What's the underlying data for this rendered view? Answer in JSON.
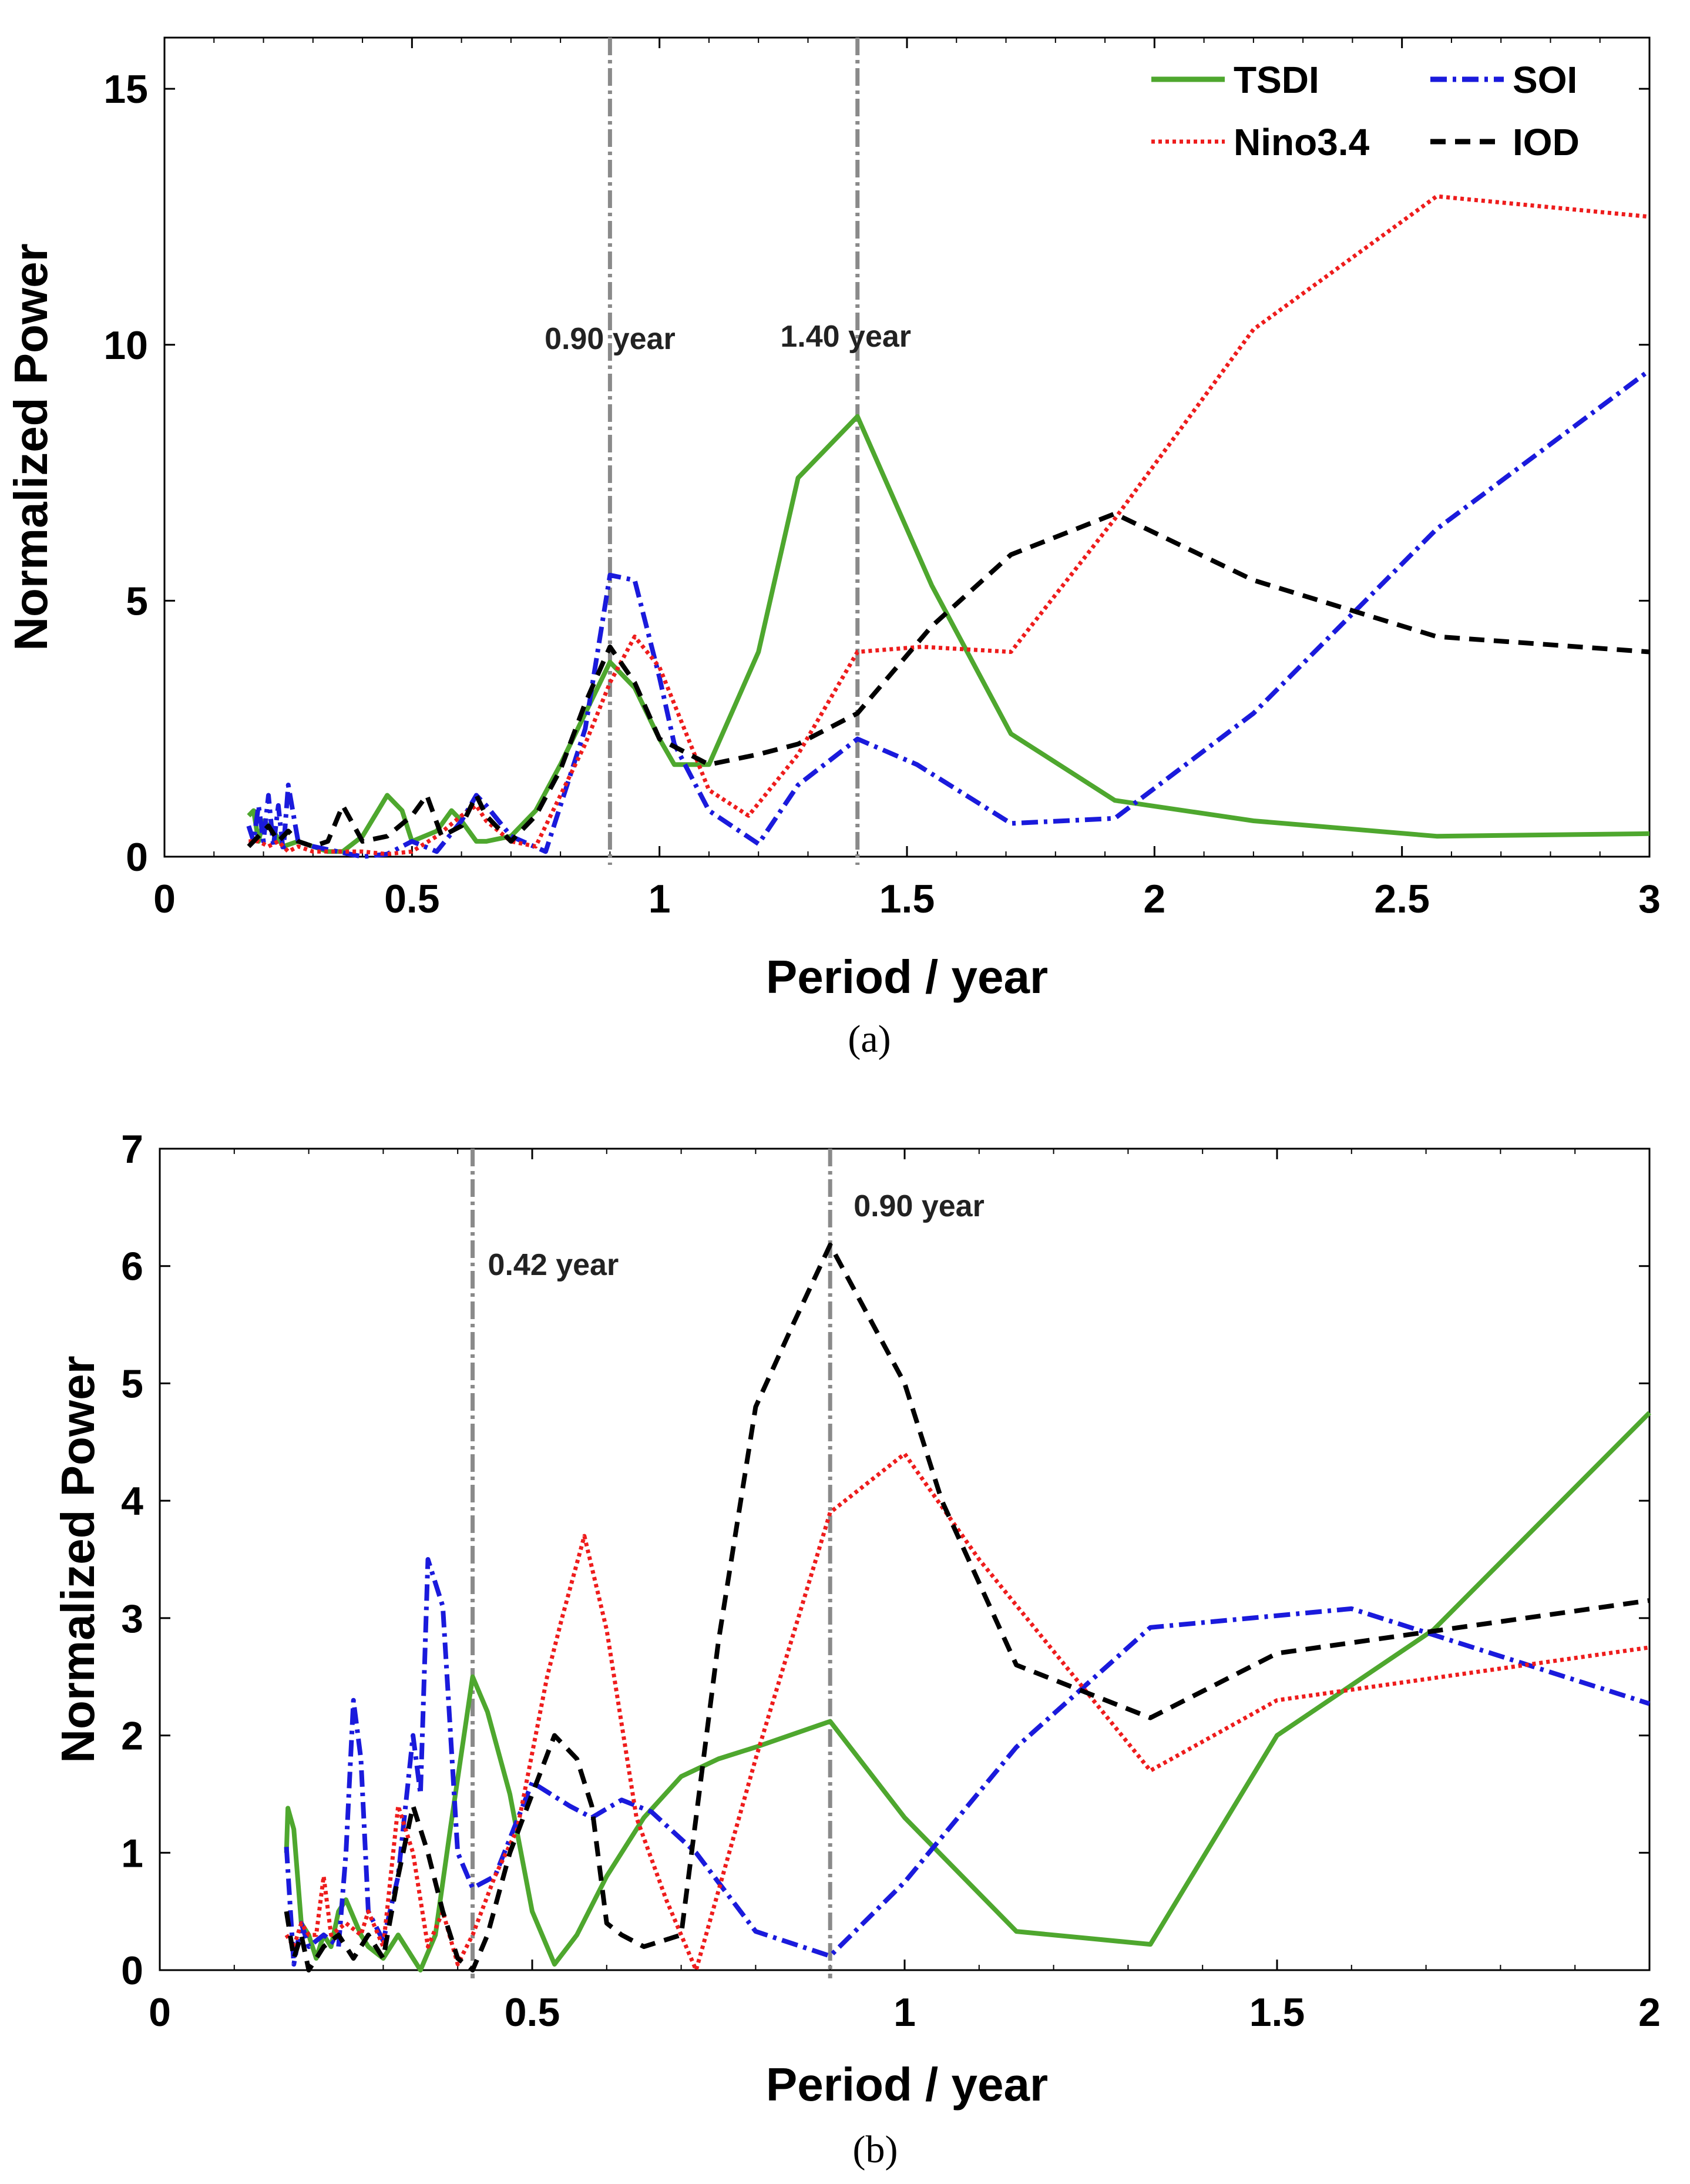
{
  "chart_data": [
    {
      "id": "a",
      "type": "line",
      "caption": "(a)",
      "xlabel": "Period / year",
      "ylabel": "Normalized Power",
      "xlim": [
        0,
        3
      ],
      "ylim": [
        0,
        16
      ],
      "xticks": [
        0,
        0.5,
        1,
        1.5,
        2,
        2.5,
        3
      ],
      "xtick_labels": [
        "0",
        "0.5",
        "1",
        "1.5",
        "2",
        "2.5",
        "3"
      ],
      "yticks": [
        0,
        5,
        10,
        15
      ],
      "ytick_labels": [
        "0",
        "5",
        "10",
        "15"
      ],
      "vlines": [
        {
          "x": 0.9,
          "label": "0.90 year"
        },
        {
          "x": 1.4,
          "label": "1.40 year"
        }
      ],
      "legend_position": "top-right",
      "series": [
        {
          "name": "TSDI",
          "color": "#4ea72e",
          "style": "solid",
          "x": [
            0.17,
            0.18,
            0.19,
            0.2,
            0.22,
            0.24,
            0.27,
            0.3,
            0.33,
            0.36,
            0.4,
            0.45,
            0.48,
            0.5,
            0.55,
            0.58,
            0.6,
            0.63,
            0.65,
            0.7,
            0.75,
            0.8,
            0.85,
            0.9,
            0.95,
            1.0,
            1.03,
            1.1,
            1.15,
            1.2,
            1.28,
            1.4,
            1.55,
            1.71,
            1.92,
            2.2,
            2.57,
            3.0
          ],
          "y": [
            0.8,
            0.9,
            0.3,
            0.7,
            0.5,
            0.2,
            0.3,
            0.2,
            0.1,
            0.1,
            0.4,
            1.2,
            0.9,
            0.3,
            0.5,
            0.9,
            0.7,
            0.3,
            0.3,
            0.4,
            0.9,
            1.8,
            2.8,
            3.8,
            3.3,
            2.3,
            1.8,
            1.8,
            2.9,
            4.0,
            7.4,
            8.6,
            5.3,
            2.4,
            1.1,
            0.7,
            0.4,
            0.45
          ]
        },
        {
          "name": "SOI",
          "color": "#1a1adc",
          "style": "dashdot",
          "x": [
            0.17,
            0.18,
            0.19,
            0.2,
            0.21,
            0.22,
            0.23,
            0.24,
            0.25,
            0.27,
            0.3,
            0.35,
            0.4,
            0.45,
            0.5,
            0.55,
            0.6,
            0.63,
            0.65,
            0.7,
            0.77,
            0.85,
            0.9,
            0.95,
            1.0,
            1.03,
            1.1,
            1.2,
            1.28,
            1.4,
            1.52,
            1.71,
            1.92,
            2.2,
            2.57,
            3.0
          ],
          "y": [
            0.6,
            0.3,
            1.0,
            0.3,
            1.2,
            0.2,
            1.0,
            0.1,
            1.4,
            0.3,
            0.2,
            0.1,
            0.0,
            0.05,
            0.3,
            0.1,
            0.7,
            1.2,
            1.0,
            0.4,
            0.1,
            2.5,
            5.5,
            5.4,
            3.5,
            2.2,
            0.9,
            0.25,
            1.4,
            2.3,
            1.8,
            0.65,
            0.75,
            2.8,
            6.4,
            9.5
          ]
        },
        {
          "name": "Nino3.4",
          "color": "#ee1c1c",
          "style": "dotted",
          "x": [
            0.17,
            0.19,
            0.21,
            0.23,
            0.25,
            0.27,
            0.3,
            0.35,
            0.4,
            0.45,
            0.5,
            0.55,
            0.6,
            0.63,
            0.65,
            0.7,
            0.75,
            0.8,
            0.85,
            0.9,
            0.95,
            1.0,
            1.1,
            1.18,
            1.28,
            1.4,
            1.53,
            1.71,
            1.92,
            2.2,
            2.57,
            3.0
          ],
          "y": [
            0.3,
            0.3,
            0.2,
            0.3,
            0.1,
            0.2,
            0.1,
            0.1,
            0.1,
            0.05,
            0.1,
            0.4,
            0.8,
            1.0,
            0.7,
            0.3,
            0.2,
            1.2,
            2.2,
            3.4,
            4.3,
            3.7,
            1.3,
            0.8,
            2.0,
            4.0,
            4.1,
            4.0,
            6.6,
            10.3,
            12.9,
            12.5
          ]
        },
        {
          "name": "IOD",
          "color": "#000000",
          "style": "dashed",
          "x": [
            0.17,
            0.19,
            0.21,
            0.23,
            0.25,
            0.27,
            0.3,
            0.33,
            0.36,
            0.4,
            0.45,
            0.5,
            0.53,
            0.56,
            0.6,
            0.63,
            0.65,
            0.7,
            0.75,
            0.8,
            0.85,
            0.9,
            0.95,
            1.0,
            1.1,
            1.2,
            1.28,
            1.4,
            1.55,
            1.71,
            1.92,
            2.2,
            2.57,
            3.0
          ],
          "y": [
            0.2,
            0.4,
            0.6,
            0.3,
            0.5,
            0.3,
            0.2,
            0.3,
            1.0,
            0.3,
            0.4,
            0.8,
            1.2,
            0.4,
            0.6,
            1.2,
            0.8,
            0.3,
            0.8,
            1.7,
            3.0,
            4.1,
            3.4,
            2.3,
            1.8,
            2.0,
            2.2,
            2.8,
            4.5,
            5.9,
            6.7,
            5.4,
            4.3,
            4.0
          ]
        }
      ]
    },
    {
      "id": "b",
      "type": "line",
      "caption": "(b)",
      "xlabel": "Period / year",
      "ylabel": "Normalized Power",
      "xlim": [
        0,
        2
      ],
      "ylim": [
        0,
        7
      ],
      "xticks": [
        0,
        0.5,
        1,
        1.5,
        2
      ],
      "xtick_labels": [
        "0",
        "0.5",
        "1",
        "1.5",
        "2"
      ],
      "yticks": [
        0,
        1,
        2,
        3,
        4,
        5,
        6,
        7
      ],
      "ytick_labels": [
        "0",
        "1",
        "2",
        "3",
        "4",
        "5",
        "6",
        "7"
      ],
      "vlines": [
        {
          "x": 0.42,
          "label": "0.42 year"
        },
        {
          "x": 0.9,
          "label": "0.90 year"
        }
      ],
      "series": [
        {
          "name": "TSDI",
          "color": "#4ea72e",
          "style": "solid",
          "x": [
            0.17,
            0.172,
            0.18,
            0.19,
            0.2,
            0.21,
            0.22,
            0.23,
            0.24,
            0.25,
            0.27,
            0.28,
            0.3,
            0.32,
            0.35,
            0.37,
            0.39,
            0.42,
            0.44,
            0.47,
            0.5,
            0.53,
            0.56,
            0.6,
            0.65,
            0.7,
            0.75,
            0.8,
            0.9,
            1.0,
            1.15,
            1.33,
            1.5,
            1.71,
            2.0
          ],
          "y": [
            1.0,
            1.38,
            1.2,
            0.4,
            0.3,
            0.1,
            0.3,
            0.2,
            0.5,
            0.6,
            0.3,
            0.2,
            0.1,
            0.3,
            0.0,
            0.3,
            1.2,
            2.5,
            2.2,
            1.5,
            0.5,
            0.05,
            0.3,
            0.8,
            1.3,
            1.65,
            1.8,
            1.9,
            2.12,
            1.3,
            0.33,
            0.22,
            2.0,
            2.9,
            4.75
          ]
        },
        {
          "name": "SOI",
          "color": "#1a1adc",
          "style": "dashdot",
          "x": [
            0.17,
            0.18,
            0.19,
            0.2,
            0.22,
            0.24,
            0.25,
            0.26,
            0.27,
            0.28,
            0.3,
            0.32,
            0.34,
            0.35,
            0.36,
            0.38,
            0.4,
            0.42,
            0.45,
            0.5,
            0.55,
            0.58,
            0.62,
            0.66,
            0.72,
            0.8,
            0.9,
            1.0,
            1.15,
            1.33,
            1.6,
            2.0
          ],
          "y": [
            1.05,
            0.05,
            0.4,
            0.2,
            0.3,
            0.2,
            1.0,
            2.3,
            1.8,
            0.5,
            0.25,
            0.8,
            2.0,
            1.5,
            3.5,
            3.1,
            1.0,
            0.7,
            0.8,
            1.6,
            1.4,
            1.3,
            1.45,
            1.35,
            1.0,
            0.33,
            0.12,
            0.75,
            1.9,
            2.92,
            3.08,
            2.27
          ]
        },
        {
          "name": "Nino3.4",
          "color": "#ee1c1c",
          "style": "dotted",
          "x": [
            0.17,
            0.18,
            0.19,
            0.2,
            0.21,
            0.22,
            0.23,
            0.25,
            0.27,
            0.28,
            0.3,
            0.32,
            0.34,
            0.36,
            0.38,
            0.4,
            0.42,
            0.45,
            0.48,
            0.52,
            0.54,
            0.57,
            0.6,
            0.64,
            0.68,
            0.72,
            0.8,
            0.9,
            1.0,
            1.1,
            1.33,
            1.5,
            2.0
          ],
          "y": [
            0.3,
            0.2,
            0.4,
            0.3,
            0.3,
            0.8,
            0.3,
            0.4,
            0.3,
            0.5,
            0.2,
            1.4,
            1.0,
            0.2,
            0.5,
            0.05,
            0.3,
            0.8,
            1.2,
            2.5,
            3.0,
            3.7,
            2.9,
            1.3,
            0.6,
            0.0,
            1.8,
            3.9,
            4.4,
            3.5,
            1.7,
            2.3,
            2.75
          ]
        },
        {
          "name": "IOD",
          "color": "#000000",
          "style": "dashed",
          "x": [
            0.17,
            0.18,
            0.19,
            0.2,
            0.22,
            0.24,
            0.26,
            0.28,
            0.3,
            0.32,
            0.34,
            0.36,
            0.38,
            0.4,
            0.42,
            0.44,
            0.47,
            0.5,
            0.53,
            0.56,
            0.58,
            0.6,
            0.62,
            0.65,
            0.7,
            0.75,
            0.8,
            0.85,
            0.9,
            1.0,
            1.05,
            1.1,
            1.15,
            1.33,
            1.5,
            2.0
          ],
          "y": [
            0.5,
            0.1,
            0.3,
            0.0,
            0.2,
            0.3,
            0.1,
            0.3,
            0.1,
            0.8,
            1.4,
            1.0,
            0.5,
            0.1,
            0.0,
            0.3,
            1.0,
            1.5,
            2.0,
            1.8,
            1.4,
            0.4,
            0.3,
            0.2,
            0.3,
            2.8,
            4.8,
            5.5,
            6.18,
            5.0,
            4.0,
            3.3,
            2.6,
            2.15,
            2.7,
            3.15
          ]
        }
      ]
    }
  ]
}
